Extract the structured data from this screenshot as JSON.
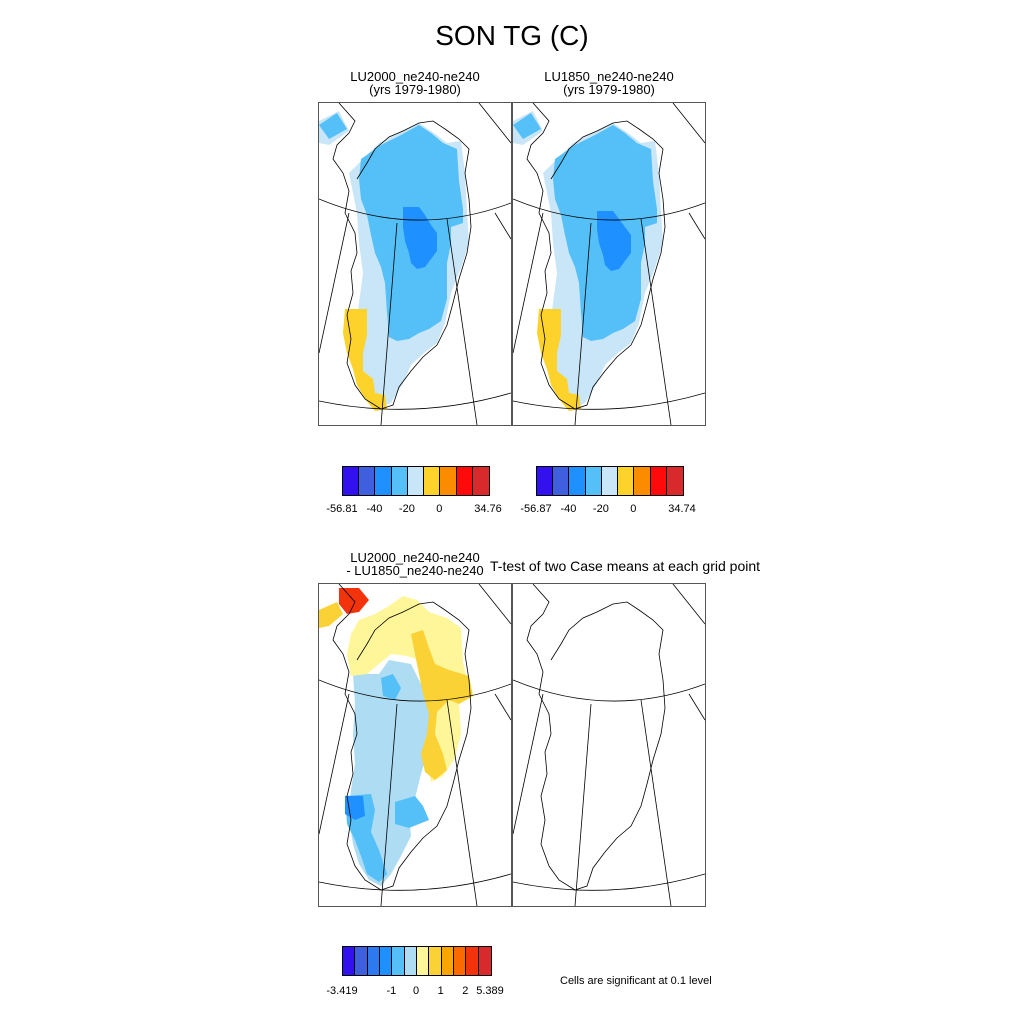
{
  "title": "SON TG (C)",
  "panels": {
    "p1": {
      "line1": "LU2000_ne240-ne240",
      "line2": "(yrs 1979-1980)"
    },
    "p2": {
      "line1": "LU1850_ne240-ne240",
      "line2": "(yrs 1979-1980)"
    },
    "p3": {
      "line1": "LU2000_ne240-ne240",
      "line2": "- LU1850_ne240-ne240"
    },
    "p4": {
      "line1": "T-test of two Case means at each grid point"
    }
  },
  "colorbars": {
    "cb1": {
      "colors": [
        "#3311ee",
        "#3f5fdf",
        "#1e90ff",
        "#55bff7",
        "#c8e6f7",
        "#fdd22a",
        "#fb8c00",
        "#ff0a0a",
        "#d8292c"
      ],
      "labels": [
        "-56.81",
        "-40",
        "-20",
        "0",
        "34.76"
      ]
    },
    "cb2": {
      "colors": [
        "#3311ee",
        "#3f5fdf",
        "#1e90ff",
        "#55bff7",
        "#c8e6f7",
        "#fdd22a",
        "#fb8c00",
        "#ff0a0a",
        "#d8292c"
      ],
      "labels": [
        "-56.87",
        "-40",
        "-20",
        "0",
        "34.74"
      ]
    },
    "cb3": {
      "colors": [
        "#3311ee",
        "#3f5fdf",
        "#2d7af0",
        "#1e90ff",
        "#55bff7",
        "#aedcf3",
        "#fff599",
        "#fbd235",
        "#fba600",
        "#fb6a00",
        "#f2330c",
        "#d8292c"
      ],
      "labels": [
        "-3.419",
        "-1",
        "0",
        "1",
        "2",
        "5.389"
      ]
    }
  },
  "note": "Cells are significant at 0.1 level"
}
